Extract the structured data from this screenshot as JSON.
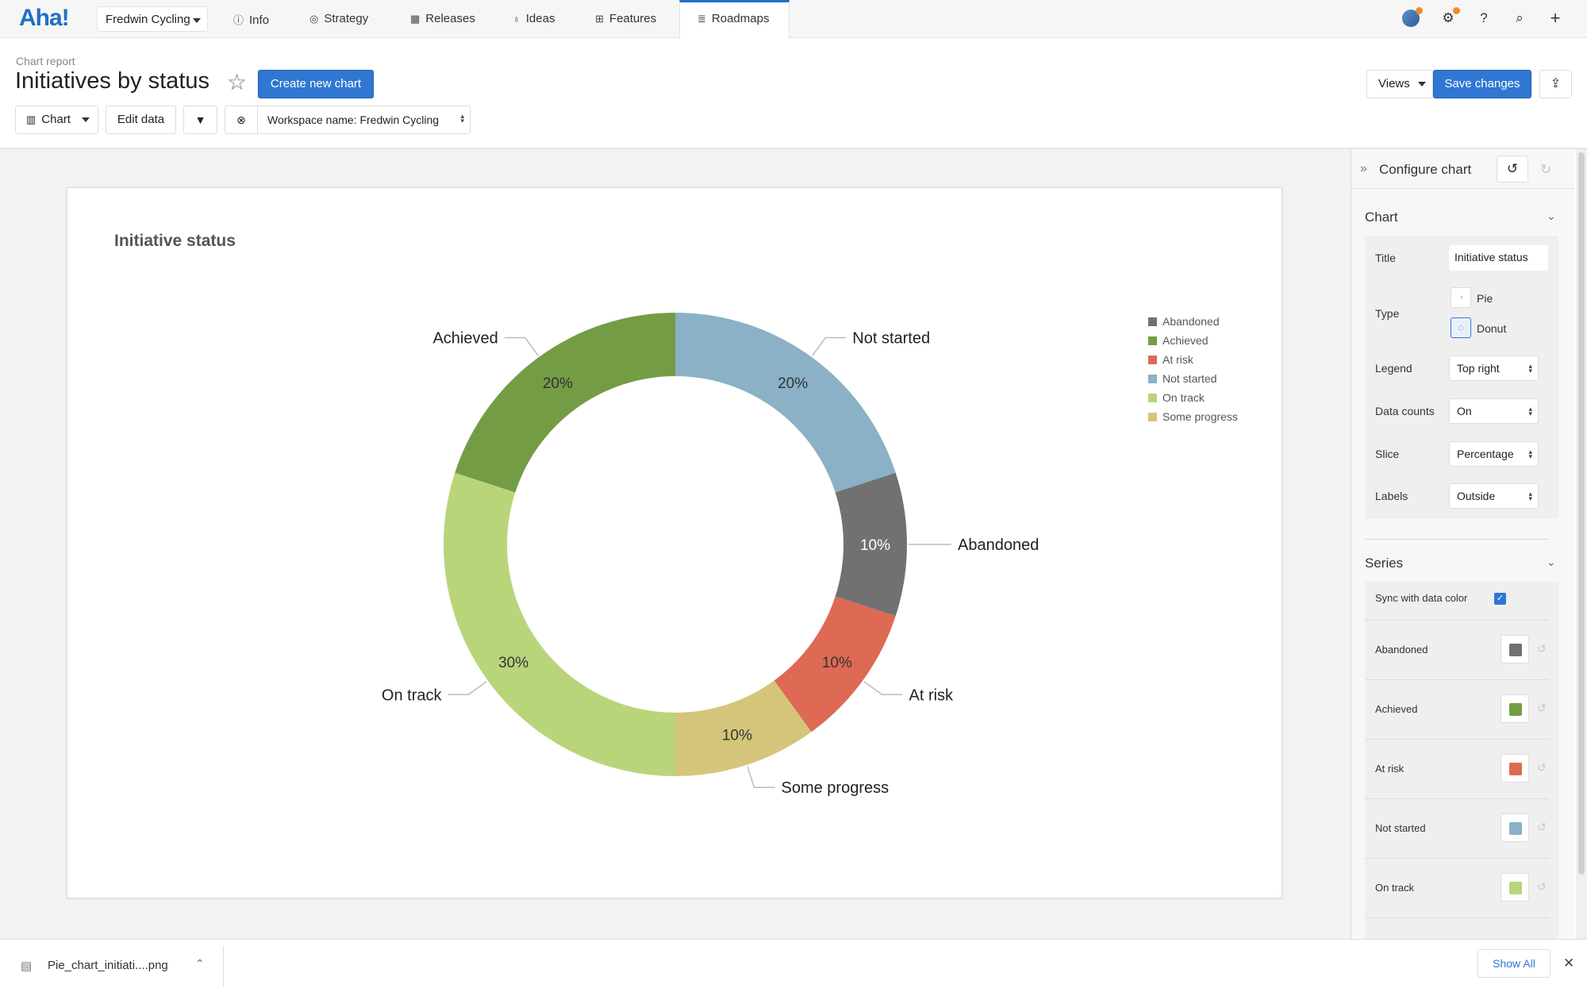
{
  "nav": {
    "logo": "Aha!",
    "workspace": "Fredwin Cycling",
    "tabs": [
      {
        "label": "Info",
        "icon": "info-icon"
      },
      {
        "label": "Strategy",
        "icon": "target-icon"
      },
      {
        "label": "Releases",
        "icon": "calendar-icon"
      },
      {
        "label": "Ideas",
        "icon": "lightbulb-icon"
      },
      {
        "label": "Features",
        "icon": "grid-icon"
      },
      {
        "label": "Roadmaps",
        "icon": "roadmap-icon",
        "active": true
      }
    ],
    "right_icons": [
      "avatar",
      "gear-icon",
      "help-icon",
      "search-icon",
      "plus-icon"
    ]
  },
  "header": {
    "subtitle": "Chart report",
    "title": "Initiatives by status",
    "create_button": "Create new chart",
    "views_button": "Views",
    "save_button": "Save changes"
  },
  "toolbar": {
    "chart_button": "Chart",
    "edit_data_button": "Edit data",
    "filter_label": "Workspace name: Fredwin Cycling"
  },
  "chart_data": {
    "type": "pie",
    "style": "donut",
    "title": "Initiative status",
    "legend_position": "top-right",
    "labels_position": "outside",
    "slice_display": "percentage",
    "slices": [
      {
        "label": "Not started",
        "value": 20,
        "color": "#8ab1c5"
      },
      {
        "label": "Abandoned",
        "value": 10,
        "color": "#717171"
      },
      {
        "label": "At risk",
        "value": 10,
        "color": "#de6954"
      },
      {
        "label": "Some progress",
        "value": 10,
        "color": "#d5c57b"
      },
      {
        "label": "On track",
        "value": 30,
        "color": "#b9d57a"
      },
      {
        "label": "Achieved",
        "value": 20,
        "color": "#749c45"
      }
    ],
    "legend": [
      {
        "label": "Abandoned",
        "color": "#717171"
      },
      {
        "label": "Achieved",
        "color": "#749c45"
      },
      {
        "label": "At risk",
        "color": "#de6954"
      },
      {
        "label": "Not started",
        "color": "#8ab1c5"
      },
      {
        "label": "On track",
        "color": "#b9d57a"
      },
      {
        "label": "Some progress",
        "color": "#d5c57b"
      }
    ]
  },
  "panel": {
    "header": "Configure chart",
    "chart_section": "Chart",
    "title_label": "Title",
    "title_value": "Initiative status",
    "type_label": "Type",
    "type_options": [
      "Pie",
      "Donut"
    ],
    "type_selected": "Donut",
    "legend_label": "Legend",
    "legend_value": "Top right",
    "data_counts_label": "Data counts",
    "data_counts_value": "On",
    "slice_label": "Slice",
    "slice_value": "Percentage",
    "labels_label": "Labels",
    "labels_value": "Outside",
    "series_section": "Series",
    "sync_label": "Sync with data color",
    "sync_checked": true,
    "series": [
      {
        "label": "Abandoned",
        "color": "#717171"
      },
      {
        "label": "Achieved",
        "color": "#749c45"
      },
      {
        "label": "At risk",
        "color": "#de6954"
      },
      {
        "label": "Not started",
        "color": "#8ab1c5"
      },
      {
        "label": "On track",
        "color": "#b9d57a"
      }
    ]
  },
  "download_bar": {
    "filename": "Pie_chart_initiati....png",
    "show_all": "Show All"
  }
}
